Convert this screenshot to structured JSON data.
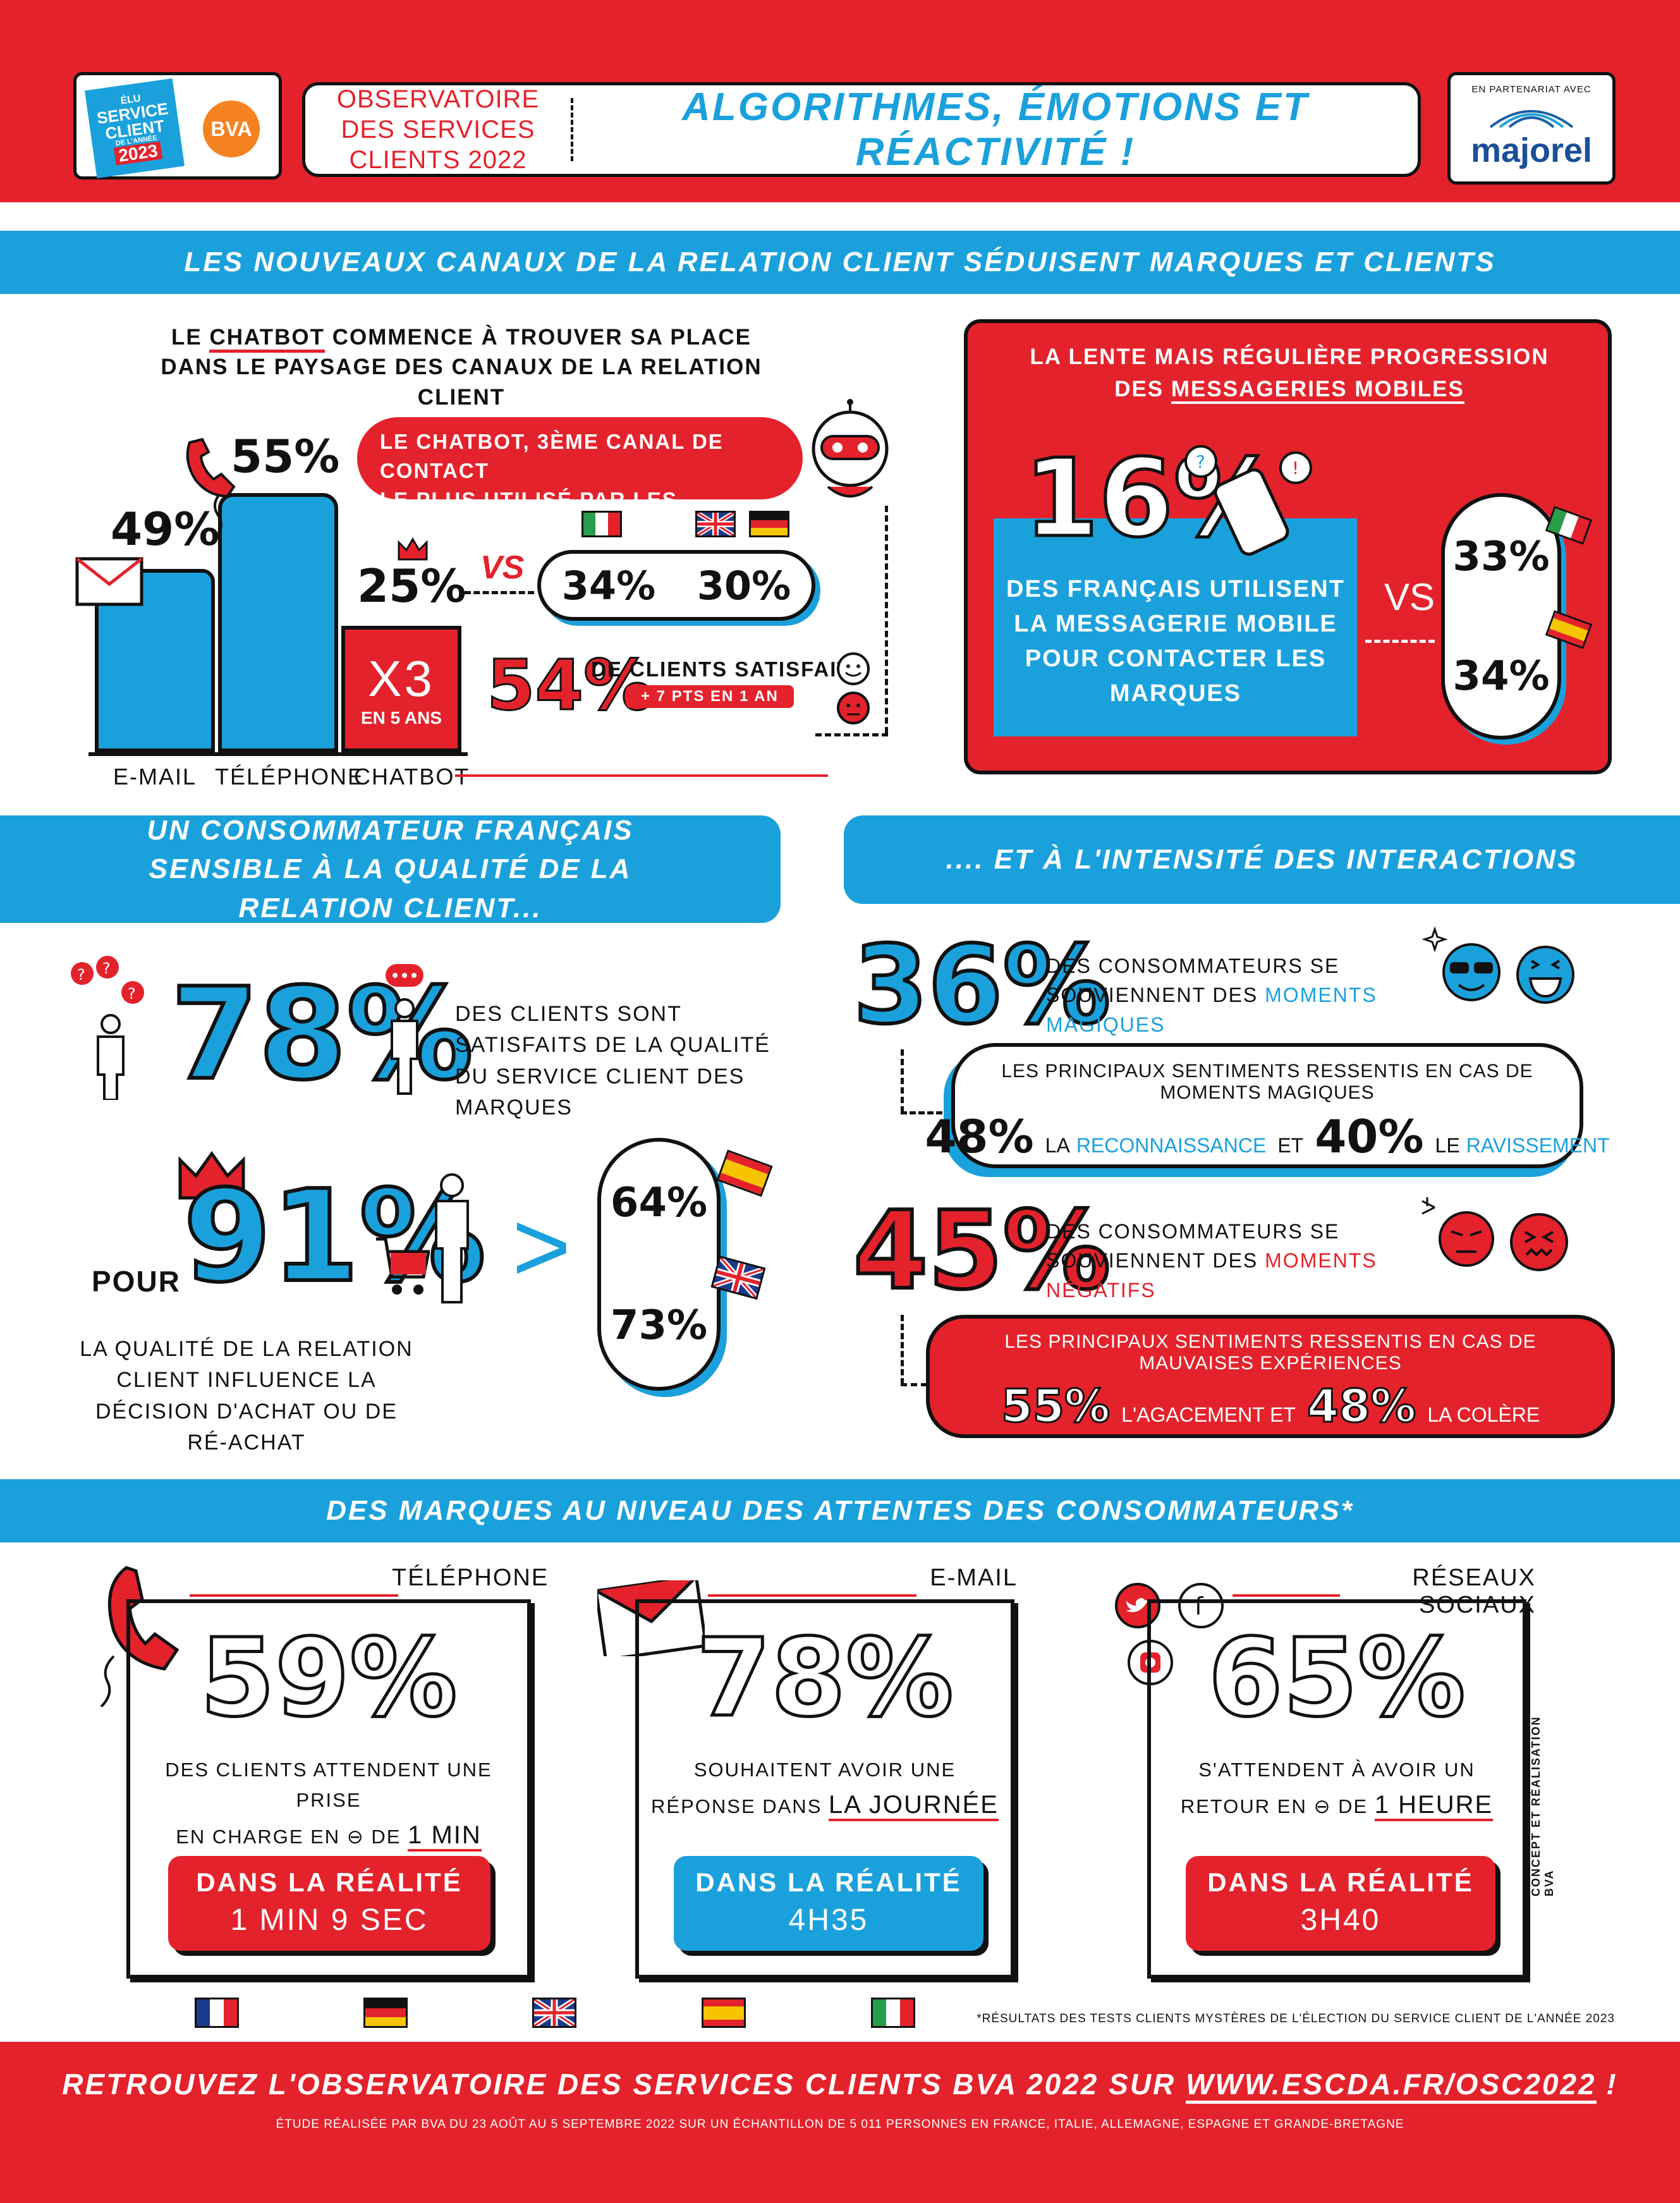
{
  "header": {
    "badge_lines": [
      "ÉLU",
      "SERVICE",
      "CLIENT",
      "DE L'ANNÉE",
      "2023"
    ],
    "bva_logo": "BVA",
    "observatoire": "OBSERVATOIRE DES SERVICES CLIENTS 2022",
    "title": "ALGORITHMES, ÉMOTIONS ET RÉACTIVITÉ !",
    "partner_label": "EN PARTENARIAT AVEC",
    "partner_logo": "majorel"
  },
  "section1": {
    "band": "LES NOUVEAUX CANAUX DE LA RELATION CLIENT SÉDUISENT MARQUES ET CLIENTS",
    "chatbot_intro_pre": "LE",
    "chatbot_intro_word": "CHATBOT",
    "chatbot_intro_rest": "COMMENCE À TROUVER SA PLACE DANS LE PAYSAGE DES CANAUX DE LA RELATION CLIENT",
    "bars": [
      {
        "label": "E-MAIL",
        "value": 49,
        "display": "49%"
      },
      {
        "label": "TÉLÉPHONE",
        "value": 55,
        "display": "55%"
      },
      {
        "label": "CHATBOT",
        "value": 25,
        "display": "25%"
      }
    ],
    "chatbot_x3": "X3",
    "chatbot_x3_sub": "EN 5 ANS",
    "chatbot_bubble_line1": "LE CHATBOT, 3ÈME CANAL DE CONTACT",
    "chatbot_bubble_line2": "LE PLUS UTILISÉ PAR LES CLIENTS",
    "vs": "VS",
    "compare_1": "34%",
    "compare_2": "30%",
    "satisfied_value": "54%",
    "satisfied_text": "DE CLIENTS SATISFAITS",
    "satisfied_sub": "+ 7 PTS EN 1 AN",
    "messaging_title_1": "LA LENTE MAIS RÉGULIÈRE PROGRESSION",
    "messaging_title_2_pre": "DES",
    "messaging_title_2_word": "MESSAGERIES MOBILES",
    "messaging_value": "16%",
    "messaging_text": "DES FRANÇAIS UTILISENT LA MESSAGERIE MOBILE POUR CONTACTER LES MARQUES",
    "messaging_vs": "VS",
    "messaging_it": "33%",
    "messaging_es": "34%"
  },
  "section2": {
    "band_left": "UN CONSOMMATEUR FRANÇAIS SENSIBLE À LA QUALITÉ DE LA RELATION CLIENT...",
    "band_right": ".... ET À L'INTENSITÉ DES INTERACTIONS",
    "satisfied_value": "78%",
    "satisfied_text": "DES CLIENTS SONT SATISFAITS DE LA QUALITÉ DU SERVICE CLIENT DES MARQUES",
    "pour": "POUR",
    "influence_value": "91%",
    "influence_text": "LA QUALITÉ DE LA RELATION CLIENT INFLUENCE LA DÉCISION D'ACHAT OU DE RÉ-ACHAT",
    "gt": ">",
    "es_value": "64%",
    "uk_value": "73%",
    "magic_value": "36%",
    "magic_text_pre": "DES CONSOMMATEURS SE SOUVIENNENT DES",
    "magic_text_word": "MOMENTS MAGIQUES",
    "magic_feelings_title": "LES PRINCIPAUX SENTIMENTS RESSENTIS EN CAS DE MOMENTS MAGIQUES",
    "magic_f1_value": "48%",
    "magic_f1_pre": "LA",
    "magic_f1_word": "RECONNAISSANCE",
    "magic_and": "ET",
    "magic_f2_value": "40%",
    "magic_f2_pre": "LE",
    "magic_f2_word": "RAVISSEMENT",
    "neg_value": "45%",
    "neg_text_pre": "DES CONSOMMATEURS SE SOUVIENNENT DES",
    "neg_text_word": "MOMENTS NÉGATIFS",
    "neg_feelings_title": "LES PRINCIPAUX SENTIMENTS RESSENTIS EN CAS DE MAUVAISES EXPÉRIENCES",
    "neg_f1_value": "55%",
    "neg_f1_text": "L'AGACEMENT ET",
    "neg_f2_value": "48%",
    "neg_f2_text": "LA COLÈRE"
  },
  "section3": {
    "band": "DES MARQUES AU NIVEAU DES ATTENTES DES CONSOMMATEURS*",
    "cards": [
      {
        "channel": "TÉLÉPHONE",
        "value": "59%",
        "text_1": "DES CLIENTS ATTENDENT UNE PRISE",
        "text_2_pre": "EN CHARGE EN",
        "text_2_mid": "DE",
        "text_2_word": "1 MIN",
        "reality_title": "DANS LA RÉALITÉ",
        "reality_value": "1 MIN 9 SEC",
        "reality_color": "#e4222b"
      },
      {
        "channel": "E-MAIL",
        "value": "78%",
        "text_1": "SOUHAITENT AVOIR UNE",
        "text_2_pre": "RÉPONSE DANS",
        "text_2_mid": "",
        "text_2_word": "LA JOURNÉE",
        "reality_title": "DANS LA RÉALITÉ",
        "reality_value": "4H35",
        "reality_color": "#1aa1dc"
      },
      {
        "channel": "RÉSEAUX SOCIAUX",
        "value": "65%",
        "text_1": "S'ATTENDENT À AVOIR UN",
        "text_2_pre": "RETOUR EN",
        "text_2_mid": "DE",
        "text_2_word": "1 HEURE",
        "reality_title": "DANS LA RÉALITÉ",
        "reality_value": "3H40",
        "reality_color": "#e4222b"
      }
    ],
    "credit": "CONCEPT ET RÉALISATION BVA",
    "footnote": "*RÉSULTATS DES TESTS CLIENTS MYSTÈRES DE L'ÉLECTION DU SERVICE CLIENT DE L'ANNÉE 2023"
  },
  "footer": {
    "cta_pre": "RETROUVEZ L'OBSERVATOIRE DES SERVICES CLIENTS BVA 2022 SUR",
    "cta_link": "WWW.ESCDA.FR/OSC2022",
    "cta_post": "!",
    "study": "ÉTUDE RÉALISÉE PAR BVA DU 23 AOÛT AU 5 SEPTEMBRE 2022 SUR UN ÉCHANTILLON DE 5 011 PERSONNES EN FRANCE, ITALIE, ALLEMAGNE, ESPAGNE ET GRANDE-BRETAGNE"
  },
  "colors": {
    "red": "#e4222b",
    "blue": "#1aa1dc",
    "black": "#111111"
  },
  "icons": [
    "envelope-icon",
    "phone-icon",
    "crown-icon",
    "robot-icon",
    "smiley-icon",
    "smartphone-icon",
    "person-icon",
    "cart-icon",
    "sunglasses-emoji-icon",
    "laughing-emoji-icon",
    "angry-emoji-icon",
    "twitter-icon",
    "facebook-icon",
    "instagram-icon",
    "flag-france-icon",
    "flag-germany-icon",
    "flag-uk-icon",
    "flag-spain-icon",
    "flag-italy-icon"
  ]
}
